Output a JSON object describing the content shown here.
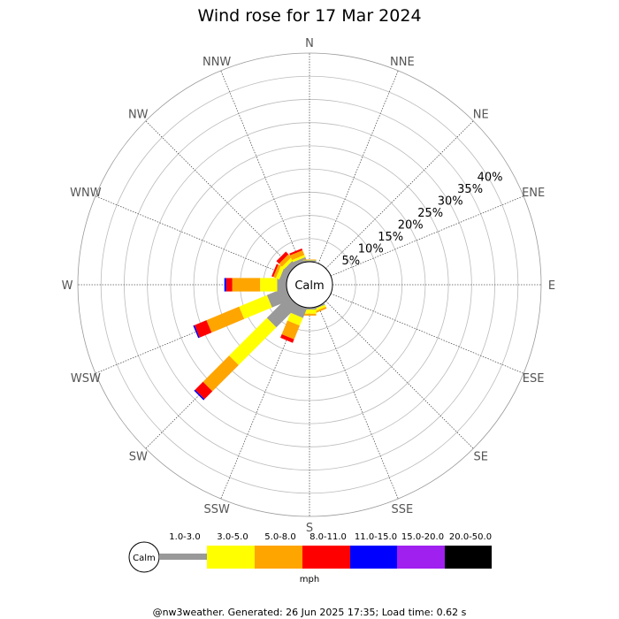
{
  "chart_data": {
    "type": "wind-rose",
    "title": "Wind rose for 17 Mar 2024",
    "directions": [
      "N",
      "NNE",
      "NE",
      "ENE",
      "E",
      "ESE",
      "SE",
      "SSE",
      "S",
      "SSW",
      "SW",
      "WSW",
      "W",
      "WNW",
      "NW",
      "NNW"
    ],
    "radial_ticks": [
      "5%",
      "10%",
      "15%",
      "20%",
      "25%",
      "30%",
      "35%",
      "40%"
    ],
    "radial_max": 45,
    "calm_label": "Calm",
    "speed_bins": [
      {
        "label": "1.0-3.0",
        "color": "#999999"
      },
      {
        "label": "3.0-5.0",
        "color": "#ffff00"
      },
      {
        "label": "5.0-8.0",
        "color": "#ffa500"
      },
      {
        "label": "8.0-11.0",
        "color": "#ff0000"
      },
      {
        "label": "11.0-15.0",
        "color": "#0000ff"
      },
      {
        "label": "15.0-20.0",
        "color": "#a020f0"
      },
      {
        "label": "20.0-50.0",
        "color": "#000000"
      }
    ],
    "unit": "mph",
    "series": [
      {
        "direction": "SSE",
        "values": [
          0.3,
          0.5,
          0.4,
          0,
          0,
          0,
          0
        ]
      },
      {
        "direction": "S",
        "values": [
          0.4,
          0.9,
          0.4,
          0,
          0,
          0,
          0
        ]
      },
      {
        "direction": "SSW",
        "values": [
          2.2,
          1.8,
          3.2,
          0.8,
          0,
          0,
          0
        ]
      },
      {
        "direction": "SW",
        "values": [
          6.6,
          11.5,
          8.0,
          2.4,
          0.3,
          0,
          0
        ]
      },
      {
        "direction": "WSW",
        "values": [
          4.4,
          6.5,
          7.6,
          2.8,
          0.3,
          0,
          0
        ]
      },
      {
        "direction": "W",
        "values": [
          2.0,
          3.7,
          6.0,
          1.3,
          0.4,
          0,
          0
        ]
      },
      {
        "direction": "WNW",
        "values": [
          1.5,
          0.8,
          0.6,
          0.4,
          0,
          0,
          0
        ]
      },
      {
        "direction": "NW",
        "values": [
          1.3,
          0.7,
          0.9,
          0.8,
          0,
          0,
          0
        ]
      },
      {
        "direction": "NNW",
        "values": [
          0.9,
          0.5,
          1.1,
          0.4,
          0,
          0,
          0
        ]
      },
      {
        "direction": "N",
        "values": [
          0.3,
          0.1,
          0.1,
          0,
          0,
          0,
          0
        ]
      }
    ]
  },
  "footer": "@nw3weather. Generated: 26 Jun 2025 17:35; Load time: 0.62 s"
}
